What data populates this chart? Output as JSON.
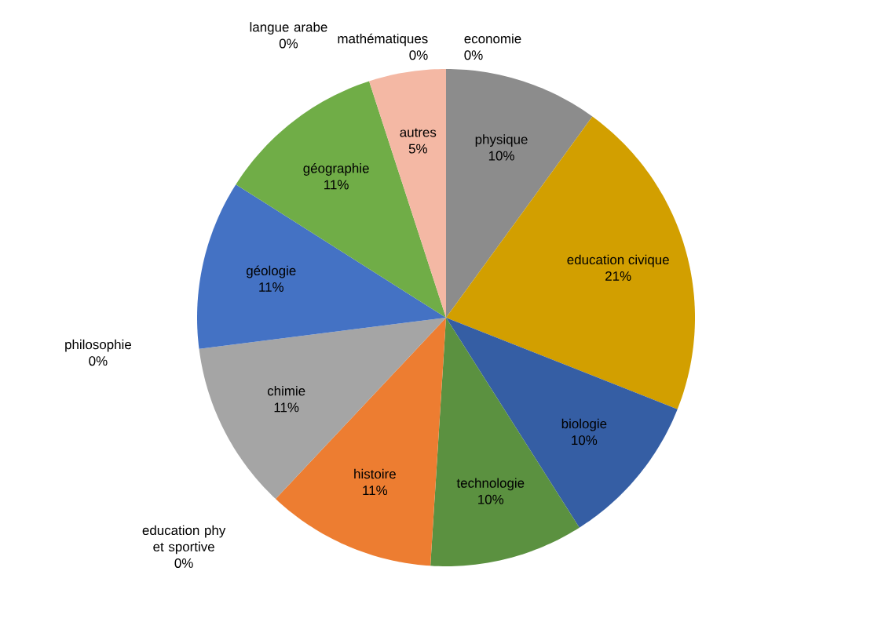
{
  "chart_data": {
    "type": "pie",
    "categories": [
      "economie",
      "physique",
      "education civique",
      "biologie",
      "technologie",
      "histoire",
      "education phy et sportive",
      "chimie",
      "philosophie",
      "géologie",
      "géographie",
      "langue arabe",
      "autres",
      "mathématiques"
    ],
    "values": [
      0,
      10,
      21,
      10,
      10,
      11,
      0,
      11,
      0,
      11,
      11,
      0,
      5,
      0
    ],
    "colors": [
      "#997300",
      "#8c8c8c",
      "#d29f00",
      "#355ea4",
      "#5b9140",
      "#ed7d31",
      "#264478",
      "#a5a5a5",
      "#636363",
      "#4472c4",
      "#70ad47",
      "#9e480e",
      "#f4b8a4",
      "#698ed0"
    ],
    "value_labels": [
      "0%",
      "10%",
      "21%",
      "10%",
      "10%",
      "11%",
      "0%",
      "11%",
      "0%",
      "11%",
      "11%",
      "0%",
      "5%",
      "0%"
    ]
  }
}
